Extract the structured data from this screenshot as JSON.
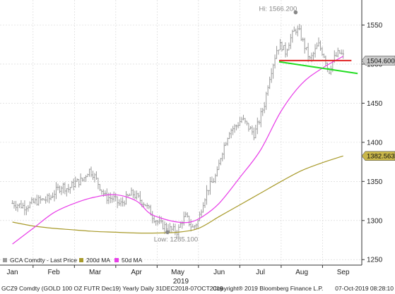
{
  "chart_data": {
    "type": "line",
    "ticker_footer": "GCZ9 Comdty (GOLD 100 OZ FUTR  Dec19) Yearly  Daily 31DEC2018-07OCT2019",
    "copyright": "Copyright® 2019 Bloomberg Finance L.P.",
    "timestamp": "07-Oct-2019 08:28:10",
    "year_label": "2019",
    "x_tick_labels": [
      "Jan",
      "Feb",
      "Mar",
      "Apr",
      "May",
      "Jun",
      "Jul",
      "Aug",
      "Sep"
    ],
    "y_tick_labels": [
      "1250",
      "1300",
      "1350",
      "1400",
      "1450",
      "1500",
      "1550"
    ],
    "ylim": [
      1243,
      1582
    ],
    "legend": [
      {
        "name": "GCA Comdty - Last Price",
        "color": "#9a9a9a"
      },
      {
        "name": "200d MA",
        "color": "#a89a2a"
      },
      {
        "name": "50d MA",
        "color": "#e83ee8"
      }
    ],
    "annotations": {
      "high": {
        "label": "Hi: 1566.200",
        "value": 1566.2
      },
      "low": {
        "label": "Low: 1285.100",
        "value": 1285.1
      }
    },
    "price_tags": [
      {
        "label": "1504.600",
        "value": 1504.6,
        "bg": "#c9c9c9"
      },
      {
        "label": "1382.563",
        "value": 1382.563,
        "bg": "#c8b64a"
      }
    ],
    "close_series": [
      {
        "x": 0,
        "y": 1322
      },
      {
        "x": 0.3,
        "y": 1318
      },
      {
        "x": 0.6,
        "y": 1325
      },
      {
        "x": 0.9,
        "y": 1328
      },
      {
        "x": 1.0,
        "y": 1335
      },
      {
        "x": 1.2,
        "y": 1345
      },
      {
        "x": 1.35,
        "y": 1340
      },
      {
        "x": 1.5,
        "y": 1348
      },
      {
        "x": 1.7,
        "y": 1352
      },
      {
        "x": 1.85,
        "y": 1365
      },
      {
        "x": 1.95,
        "y": 1360
      },
      {
        "x": 2.1,
        "y": 1345
      },
      {
        "x": 2.25,
        "y": 1330
      },
      {
        "x": 2.45,
        "y": 1328
      },
      {
        "x": 2.6,
        "y": 1320
      },
      {
        "x": 2.75,
        "y": 1328
      },
      {
        "x": 2.9,
        "y": 1335
      },
      {
        "x": 3.05,
        "y": 1328
      },
      {
        "x": 3.2,
        "y": 1322
      },
      {
        "x": 3.4,
        "y": 1305
      },
      {
        "x": 3.55,
        "y": 1296
      },
      {
        "x": 3.7,
        "y": 1292
      },
      {
        "x": 3.85,
        "y": 1288
      },
      {
        "x": 4.0,
        "y": 1286
      },
      {
        "x": 4.1,
        "y": 1300
      },
      {
        "x": 4.2,
        "y": 1305
      },
      {
        "x": 4.35,
        "y": 1290
      },
      {
        "x": 4.5,
        "y": 1300
      },
      {
        "x": 4.6,
        "y": 1322
      },
      {
        "x": 4.72,
        "y": 1340
      },
      {
        "x": 4.85,
        "y": 1350
      },
      {
        "x": 4.95,
        "y": 1360
      },
      {
        "x": 5.05,
        "y": 1385
      },
      {
        "x": 5.15,
        "y": 1400
      },
      {
        "x": 5.25,
        "y": 1415
      },
      {
        "x": 5.4,
        "y": 1420
      },
      {
        "x": 5.55,
        "y": 1430
      },
      {
        "x": 5.7,
        "y": 1420
      },
      {
        "x": 5.85,
        "y": 1410
      },
      {
        "x": 5.95,
        "y": 1425
      },
      {
        "x": 6.1,
        "y": 1450
      },
      {
        "x": 6.2,
        "y": 1480
      },
      {
        "x": 6.3,
        "y": 1500
      },
      {
        "x": 6.4,
        "y": 1520
      },
      {
        "x": 6.5,
        "y": 1525
      },
      {
        "x": 6.6,
        "y": 1515
      },
      {
        "x": 6.7,
        "y": 1530
      },
      {
        "x": 6.85,
        "y": 1545
      },
      {
        "x": 6.95,
        "y": 1540
      },
      {
        "x": 7.05,
        "y": 1525
      },
      {
        "x": 7.2,
        "y": 1505
      },
      {
        "x": 7.3,
        "y": 1515
      },
      {
        "x": 7.4,
        "y": 1525
      },
      {
        "x": 7.55,
        "y": 1510
      },
      {
        "x": 7.65,
        "y": 1490
      },
      {
        "x": 7.75,
        "y": 1505
      },
      {
        "x": 7.9,
        "y": 1515
      },
      {
        "x": 8.0,
        "y": 1510
      }
    ],
    "ma200_series": [
      {
        "x": 0,
        "y": 1298
      },
      {
        "x": 0.5,
        "y": 1293
      },
      {
        "x": 1,
        "y": 1290
      },
      {
        "x": 1.5,
        "y": 1288
      },
      {
        "x": 2,
        "y": 1286
      },
      {
        "x": 2.5,
        "y": 1285
      },
      {
        "x": 3,
        "y": 1284
      },
      {
        "x": 3.5,
        "y": 1284
      },
      {
        "x": 4,
        "y": 1285
      },
      {
        "x": 4.5,
        "y": 1290
      },
      {
        "x": 5,
        "y": 1305
      },
      {
        "x": 5.5,
        "y": 1320
      },
      {
        "x": 6,
        "y": 1335
      },
      {
        "x": 6.5,
        "y": 1350
      },
      {
        "x": 7,
        "y": 1364
      },
      {
        "x": 7.5,
        "y": 1374
      },
      {
        "x": 8,
        "y": 1382.6
      }
    ],
    "ma50_series": [
      {
        "x": 0,
        "y": 1270
      },
      {
        "x": 0.5,
        "y": 1290
      },
      {
        "x": 1,
        "y": 1310
      },
      {
        "x": 1.5,
        "y": 1322
      },
      {
        "x": 2,
        "y": 1330
      },
      {
        "x": 2.5,
        "y": 1333
      },
      {
        "x": 3,
        "y": 1325
      },
      {
        "x": 3.3,
        "y": 1310
      },
      {
        "x": 3.6,
        "y": 1303
      },
      {
        "x": 4,
        "y": 1298
      },
      {
        "x": 4.3,
        "y": 1298
      },
      {
        "x": 4.6,
        "y": 1305
      },
      {
        "x": 5,
        "y": 1322
      },
      {
        "x": 5.5,
        "y": 1355
      },
      {
        "x": 6,
        "y": 1390
      },
      {
        "x": 6.5,
        "y": 1440
      },
      {
        "x": 7,
        "y": 1475
      },
      {
        "x": 7.5,
        "y": 1495
      },
      {
        "x": 8,
        "y": 1510
      }
    ],
    "support_line_red": {
      "y": 1504.6,
      "x_start": 6.45,
      "x_end": 8.2,
      "color": "#e02020"
    },
    "trend_line_green": {
      "start": {
        "x": 6.45,
        "y": 1503
      },
      "end": {
        "x": 8.35,
        "y": 1488
      },
      "color": "#22dd22"
    }
  }
}
